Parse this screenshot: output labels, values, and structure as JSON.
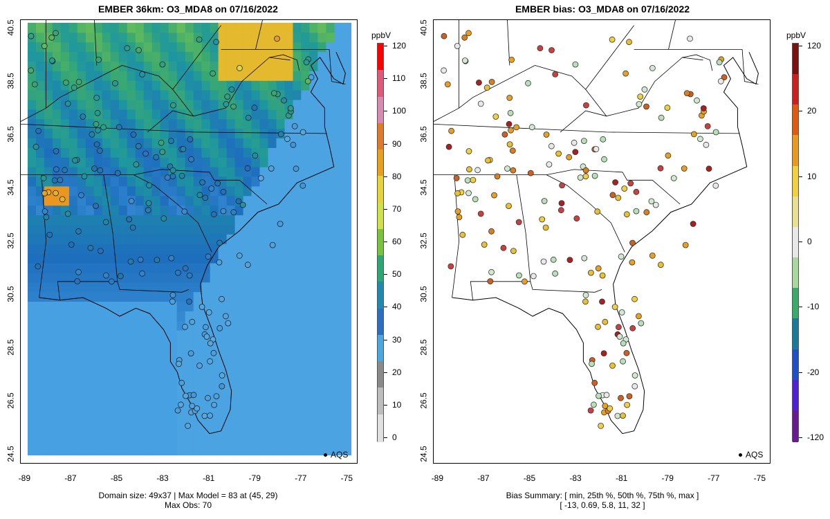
{
  "left_panel": {
    "title": "EMBER 36km: O3_MDA8 on 07/16/2022",
    "footer_line1": "Domain size: 49x37 | Max Model = 83 at (45, 29)",
    "footer_line2": "Max Obs: 70",
    "legend_label": "AQS",
    "colorbar": {
      "unit": "ppbV",
      "labels": [
        "120",
        "110",
        "100",
        "90",
        "80",
        "70",
        "60",
        "50",
        "40",
        "30",
        "20",
        "10",
        "0"
      ],
      "colors": [
        "#ff0000",
        "#e0587a",
        "#d88ab3",
        "#e07a2a",
        "#e6a01e",
        "#e8d23a",
        "#cfe04a",
        "#7bc23c",
        "#2aa772",
        "#1f8ab0",
        "#2a6fc4",
        "#4aa8e0",
        "#8a8a8a",
        "#bdbdbd",
        "#e0e0e0"
      ]
    }
  },
  "right_panel": {
    "title": "EMBER bias: O3_MDA8 on 07/16/2022",
    "footer_line1": "Bias Summary: [ min, 25th %, 50th %, 75th %, max ]",
    "footer_line2": "[ -13,   0.69,   5.8,   11,   32 ]",
    "legend_label": "AQS",
    "colorbar": {
      "unit": "ppbV",
      "labels": [
        "120",
        "20",
        "10",
        "0",
        "-10",
        "-20",
        "-120"
      ],
      "colors": [
        "#7a1010",
        "#cc2020",
        "#e05a10",
        "#e89a20",
        "#f0d040",
        "#e8e090",
        "#e8e8e8",
        "#a8d8a0",
        "#3aaa6a",
        "#1a7a9a",
        "#2050c8",
        "#5020d8",
        "#6a1a90"
      ]
    }
  },
  "axes": {
    "x_ticks": [
      "-89",
      "-87",
      "-85",
      "-83",
      "-81",
      "-79",
      "-77",
      "-75"
    ],
    "y_ticks": [
      "40.5",
      "38.5",
      "36.5",
      "34.5",
      "32.5",
      "30.5",
      "28.5",
      "26.5",
      "24.5"
    ]
  },
  "chart_data": [
    {
      "type": "heatmap",
      "title": "EMBER 36km: O3_MDA8 on 07/16/2022",
      "variable": "O3_MDA8",
      "unit": "ppbV",
      "xlim": [
        -89,
        -75
      ],
      "ylim": [
        24.5,
        40.5
      ],
      "color_range": [
        0,
        120
      ],
      "domain_size": "49x37",
      "max_model": 83,
      "max_model_location": "(45, 29)",
      "max_obs": 70
    },
    {
      "type": "scatter",
      "title": "EMBER bias: O3_MDA8 on 07/16/2022",
      "unit": "ppbV",
      "xlim": [
        -89,
        -75
      ],
      "ylim": [
        24.5,
        40.5
      ],
      "bias_summary": {
        "min": -13,
        "p25": 0.69,
        "p50": 5.8,
        "p75": 11,
        "max": 32
      }
    }
  ]
}
